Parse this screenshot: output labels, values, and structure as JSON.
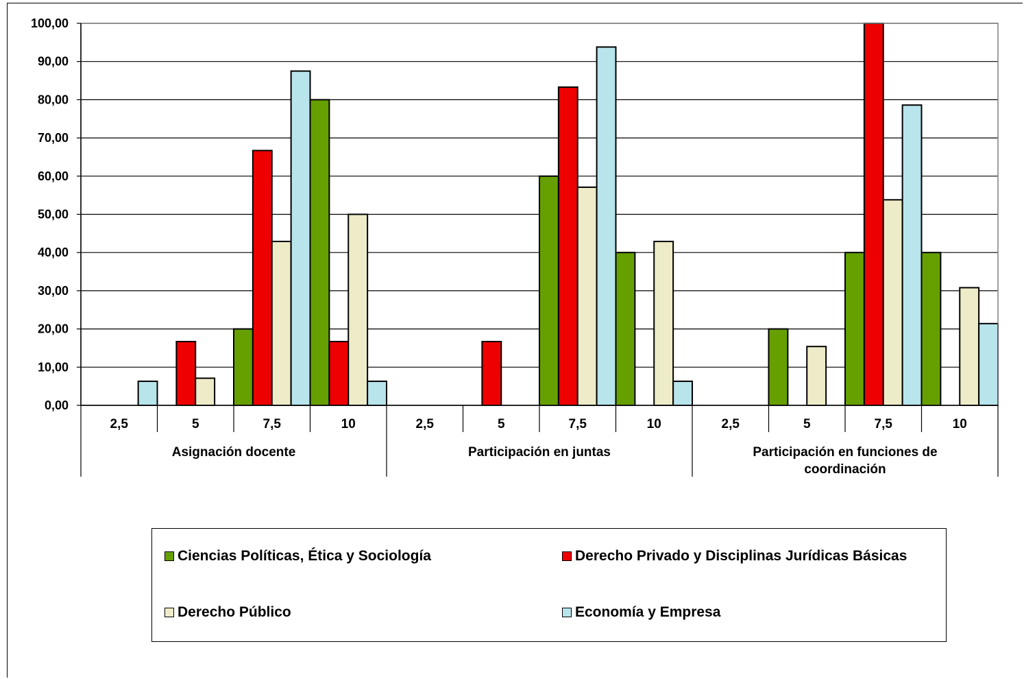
{
  "chart_data": {
    "type": "bar",
    "groups": [
      {
        "label": "Asignación docente",
        "label_lines": [
          "Asignación docente"
        ]
      },
      {
        "label": "Participación en juntas",
        "label_lines": [
          "Participación en juntas"
        ]
      },
      {
        "label": "Participación en funciones de coordinación",
        "label_lines": [
          "Participación en funciones de",
          "coordinación"
        ]
      }
    ],
    "categories": [
      "2,5",
      "5",
      "7,5",
      "10"
    ],
    "ylim": [
      0,
      100
    ],
    "yticks": [
      "0,00",
      "10,00",
      "20,00",
      "30,00",
      "40,00",
      "50,00",
      "60,00",
      "70,00",
      "80,00",
      "90,00",
      "100,00"
    ],
    "grid": true,
    "legend_position": "bottom",
    "series": [
      {
        "name": "Ciencias Políticas, Ética y  Sociología",
        "color": "#66A000",
        "values": [
          [
            0,
            0,
            20,
            80
          ],
          [
            0,
            0,
            60,
            40
          ],
          [
            0,
            20,
            40,
            40
          ]
        ]
      },
      {
        "name": "Derecho Privado y Disciplinas Jurídicas Básicas",
        "color": "#EE0000",
        "values": [
          [
            0,
            16.7,
            66.7,
            16.7
          ],
          [
            0,
            16.7,
            83.3,
            0
          ],
          [
            0,
            0,
            100,
            0
          ]
        ]
      },
      {
        "name": "Derecho Público",
        "color": "#EEECC8",
        "values": [
          [
            0,
            7.1,
            42.9,
            50
          ],
          [
            0,
            0,
            57.1,
            42.9
          ],
          [
            0,
            15.4,
            53.8,
            30.8
          ]
        ]
      },
      {
        "name": "Economía y Empresa",
        "color": "#B8E4EC",
        "values": [
          [
            6.3,
            0,
            87.5,
            6.3
          ],
          [
            0,
            0,
            93.8,
            6.3
          ],
          [
            0,
            0,
            78.6,
            21.4
          ]
        ]
      }
    ]
  }
}
